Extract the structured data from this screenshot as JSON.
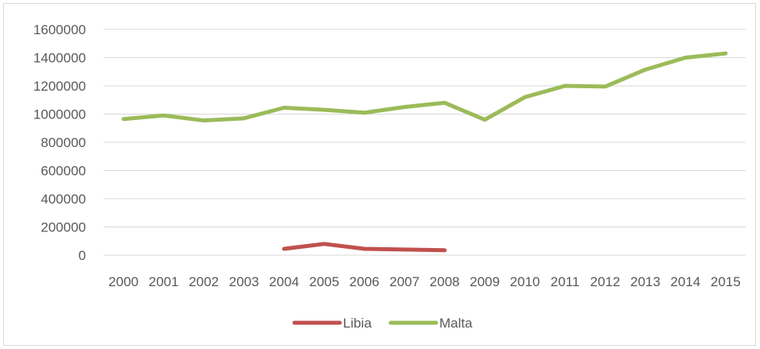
{
  "chart_data": {
    "type": "line",
    "categories": [
      "2000",
      "2001",
      "2002",
      "2003",
      "2004",
      "2005",
      "2006",
      "2007",
      "2008",
      "2009",
      "2010",
      "2011",
      "2012",
      "2013",
      "2014",
      "2015"
    ],
    "series": [
      {
        "name": "Libia",
        "color": "#c0504d",
        "values": [
          null,
          null,
          null,
          null,
          45000,
          80000,
          45000,
          40000,
          35000,
          null,
          null,
          null,
          null,
          null,
          null,
          null
        ]
      },
      {
        "name": "Malta",
        "color": "#9bbb59",
        "values": [
          965000,
          990000,
          955000,
          970000,
          1045000,
          1030000,
          1010000,
          1050000,
          1080000,
          960000,
          1120000,
          1200000,
          1195000,
          1315000,
          1400000,
          1430000
        ]
      }
    ],
    "yticks": [
      "0",
      "200000",
      "400000",
      "600000",
      "800000",
      "1000000",
      "1200000",
      "1400000",
      "1600000"
    ],
    "ylim": [
      0,
      1600000
    ],
    "grid": true,
    "legend": "bottom"
  }
}
